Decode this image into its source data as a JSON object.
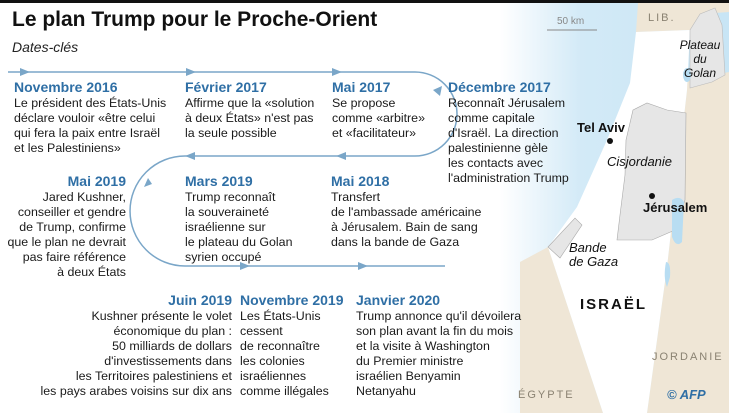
{
  "title": "Le plan Trump pour le Proche-Orient",
  "subtitle": "Dates-clés",
  "events": [
    {
      "date": "Novembre 2016",
      "text": [
        "Le président des États-Unis",
        "déclare vouloir «être celui",
        "qui fera la paix entre Israël",
        "et les Palestiniens»"
      ]
    },
    {
      "date": "Février 2017",
      "text": [
        "Affirme que la «solution",
        "à deux États» n'est pas",
        "la seule possible"
      ]
    },
    {
      "date": "Mai 2017",
      "text": [
        "Se propose",
        "comme «arbitre»",
        "et «facilitateur»"
      ]
    },
    {
      "date": "Décembre 2017",
      "text": [
        "Reconnaît Jérusalem",
        "comme capitale",
        "d'Israël. La direction",
        "palestinienne gèle",
        "les contacts avec",
        "l'administration Trump"
      ]
    },
    {
      "date": "Mai 2018",
      "text": [
        "Transfert",
        "de l'ambassade américaine",
        "à Jérusalem. Bain de sang",
        "dans la bande de Gaza"
      ]
    },
    {
      "date": "Mars 2019",
      "text": [
        "Trump reconnaît",
        "la souveraineté",
        "israélienne sur",
        "le plateau du Golan",
        "syrien occupé"
      ]
    },
    {
      "date": "Mai 2019",
      "text": [
        "Jared Kushner,",
        "conseiller et gendre",
        "de Trump, confirme",
        "que le plan ne devrait",
        "pas faire référence",
        "à deux États"
      ]
    },
    {
      "date": "Juin 2019",
      "text": [
        "Kushner présente le volet",
        "économique du plan :",
        "50 milliards de dollars",
        "d'investissements dans",
        "les Territoires palestiniens et",
        "les pays arabes voisins sur dix ans"
      ]
    },
    {
      "date": "Novembre 2019",
      "text": [
        "Les États-Unis",
        "cessent",
        "de reconnaître",
        "les colonies",
        "israéliennes",
        "comme illégales"
      ]
    },
    {
      "date": "Janvier 2020",
      "text": [
        "Trump annonce qu'il dévoilera",
        "son plan avant la fin du mois",
        "et la visite à Washington",
        "du Premier ministre",
        "israélien Benyamin",
        "Netanyahu"
      ]
    }
  ],
  "map": {
    "scale": "50 km",
    "countries": {
      "lebanon": "LIB.",
      "jordan": "JORDANIE",
      "egypt": "ÉGYPTE",
      "israel": "ISRAËL"
    },
    "regions": {
      "golan": [
        "Plateau",
        "du",
        "Golan"
      ],
      "westbank": "Cisjordanie",
      "gaza": [
        "Bande",
        "de Gaza"
      ]
    },
    "cities": {
      "telaviv": "Tel Aviv",
      "jerusalem": "Jérusalem"
    }
  },
  "credit": "© AFP",
  "colors": {
    "accent": "#2f6fa5",
    "sea": "#cfe8f6",
    "land": "#efe6d6",
    "territory": "#e6e6e6",
    "timeline": "#7aa6c8"
  }
}
